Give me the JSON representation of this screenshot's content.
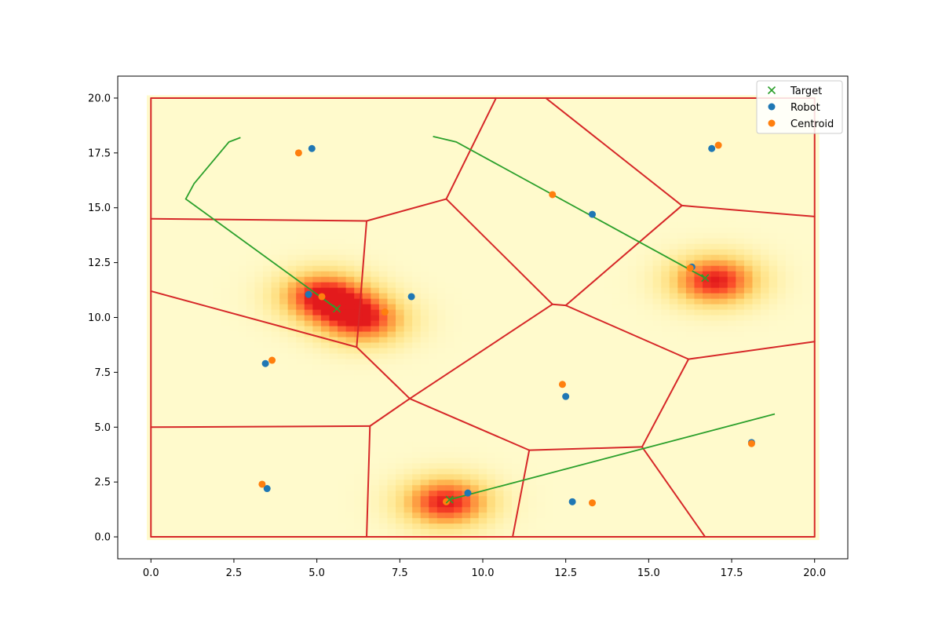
{
  "chart_data": {
    "type": "scatter",
    "title": "",
    "xlabel": "",
    "ylabel": "",
    "xlim": [
      -1,
      21
    ],
    "ylim": [
      -1,
      21
    ],
    "xticks": [
      0.0,
      2.5,
      5.0,
      7.5,
      10.0,
      12.5,
      15.0,
      17.5,
      20.0
    ],
    "yticks": [
      0.0,
      2.5,
      5.0,
      7.5,
      10.0,
      12.5,
      15.0,
      17.5,
      20.0
    ],
    "xtick_labels": [
      "0.0",
      "2.5",
      "5.0",
      "7.5",
      "10.0",
      "12.5",
      "15.0",
      "17.5",
      "20.0"
    ],
    "ytick_labels": [
      "0.0",
      "2.5",
      "5.0",
      "7.5",
      "10.0",
      "12.5",
      "15.0",
      "17.5",
      "20.0"
    ],
    "grid": false,
    "legend_position": "top-right",
    "heatmap": {
      "colormap": "YlOrRd",
      "domain": [
        [
          0,
          20
        ],
        [
          0,
          20
        ]
      ],
      "peaks": [
        {
          "x": 5.2,
          "y": 11.0,
          "weight": 1.0
        },
        {
          "x": 6.4,
          "y": 9.9,
          "weight": 0.9
        },
        {
          "x": 17.0,
          "y": 11.7,
          "weight": 1.0
        },
        {
          "x": 8.9,
          "y": 1.6,
          "weight": 1.0
        }
      ]
    },
    "voronoi_edges": [
      [
        [
          0,
          20
        ],
        [
          20,
          20
        ]
      ],
      [
        [
          0,
          0
        ],
        [
          20,
          0
        ]
      ],
      [
        [
          0,
          0
        ],
        [
          0,
          20
        ]
      ],
      [
        [
          20,
          0
        ],
        [
          20,
          20
        ]
      ],
      [
        [
          0,
          14.5
        ],
        [
          6.5,
          14.4
        ]
      ],
      [
        [
          6.5,
          14.4
        ],
        [
          8.9,
          15.4
        ]
      ],
      [
        [
          8.9,
          15.4
        ],
        [
          10.4,
          20.0
        ]
      ],
      [
        [
          8.9,
          15.4
        ],
        [
          12.1,
          10.6
        ]
      ],
      [
        [
          6.5,
          14.4
        ],
        [
          6.2,
          8.65
        ]
      ],
      [
        [
          0,
          11.2
        ],
        [
          6.2,
          8.65
        ]
      ],
      [
        [
          6.2,
          8.65
        ],
        [
          7.8,
          6.3
        ]
      ],
      [
        [
          7.8,
          6.3
        ],
        [
          12.1,
          10.6
        ]
      ],
      [
        [
          12.1,
          10.6
        ],
        [
          12.5,
          10.55
        ]
      ],
      [
        [
          12.5,
          10.55
        ],
        [
          16.0,
          15.1
        ]
      ],
      [
        [
          16.0,
          15.1
        ],
        [
          11.9,
          20.0
        ]
      ],
      [
        [
          16.0,
          15.1
        ],
        [
          20.0,
          14.6
        ]
      ],
      [
        [
          12.5,
          10.55
        ],
        [
          16.2,
          8.1
        ]
      ],
      [
        [
          16.2,
          8.1
        ],
        [
          20.0,
          8.9
        ]
      ],
      [
        [
          16.2,
          8.1
        ],
        [
          14.8,
          4.1
        ]
      ],
      [
        [
          14.8,
          4.1
        ],
        [
          16.7,
          0
        ]
      ],
      [
        [
          14.8,
          4.1
        ],
        [
          11.4,
          3.95
        ]
      ],
      [
        [
          11.4,
          3.95
        ],
        [
          7.8,
          6.3
        ]
      ],
      [
        [
          11.4,
          3.95
        ],
        [
          10.9,
          0
        ]
      ],
      [
        [
          7.8,
          6.3
        ],
        [
          6.6,
          5.05
        ]
      ],
      [
        [
          6.6,
          5.05
        ],
        [
          0,
          5.0
        ]
      ],
      [
        [
          6.6,
          5.05
        ],
        [
          6.5,
          0
        ]
      ]
    ],
    "trajectories": [
      [
        [
          2.7,
          18.2
        ],
        [
          2.35,
          18.0
        ],
        [
          1.3,
          16.1
        ],
        [
          1.05,
          15.4
        ],
        [
          5.6,
          10.4
        ]
      ],
      [
        [
          8.5,
          18.25
        ],
        [
          9.2,
          18.0
        ],
        [
          16.7,
          11.8
        ]
      ],
      [
        [
          18.8,
          5.6
        ],
        [
          9.0,
          1.7
        ]
      ]
    ],
    "series": [
      {
        "name": "Target",
        "marker": "x",
        "color": "#2ca02c",
        "points": [
          [
            5.6,
            10.4
          ],
          [
            16.7,
            11.8
          ],
          [
            9.0,
            1.7
          ]
        ]
      },
      {
        "name": "Robot",
        "marker": "o",
        "color": "#1f77b4",
        "points": [
          [
            4.85,
            17.7
          ],
          [
            16.9,
            17.7
          ],
          [
            13.3,
            14.7
          ],
          [
            16.3,
            12.3
          ],
          [
            4.75,
            11.05
          ],
          [
            7.85,
            10.95
          ],
          [
            3.45,
            7.9
          ],
          [
            12.5,
            6.4
          ],
          [
            18.1,
            4.3
          ],
          [
            3.5,
            2.2
          ],
          [
            9.55,
            2.0
          ],
          [
            12.7,
            1.6
          ]
        ]
      },
      {
        "name": "Centroid",
        "marker": "o",
        "color": "#ff7f0e",
        "points": [
          [
            4.45,
            17.5
          ],
          [
            17.1,
            17.85
          ],
          [
            12.1,
            15.6
          ],
          [
            16.25,
            12.25
          ],
          [
            5.15,
            10.95
          ],
          [
            7.05,
            10.25
          ],
          [
            3.65,
            8.05
          ],
          [
            12.4,
            6.95
          ],
          [
            18.1,
            4.25
          ],
          [
            3.35,
            2.4
          ],
          [
            8.9,
            1.6
          ],
          [
            13.3,
            1.55
          ]
        ]
      }
    ]
  }
}
